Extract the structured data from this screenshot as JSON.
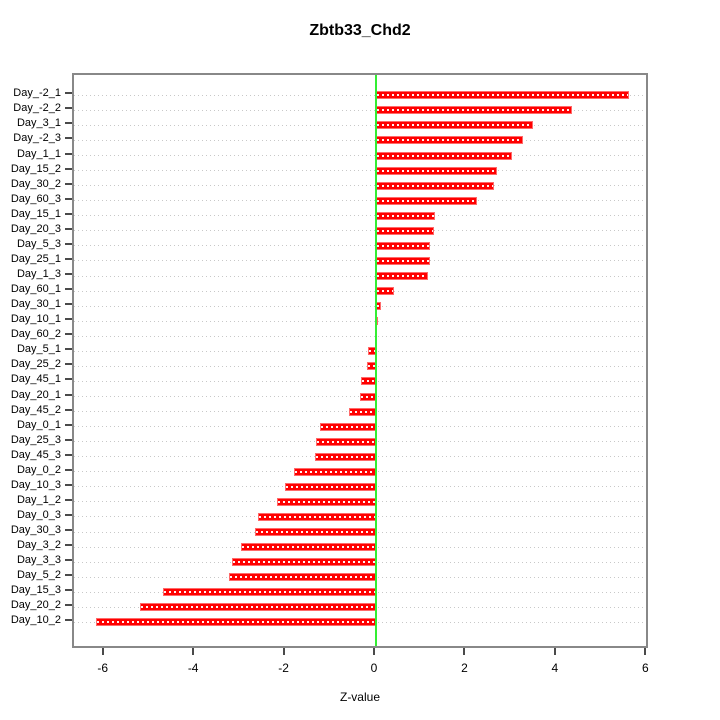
{
  "chart_data": {
    "type": "bar",
    "orientation": "horizontal",
    "title": "Zbtb33_Chd2",
    "xlabel": "Z-value",
    "ylabel": "",
    "xlim": [
      -6.68,
      6.06
    ],
    "x_ticks": [
      -6,
      -4,
      -2,
      0,
      2,
      4,
      6
    ],
    "grid": "dotted-horizontal",
    "legend": "none",
    "categories": [
      "Day_-2_1",
      "Day_-2_2",
      "Day_3_1",
      "Day_-2_3",
      "Day_1_1",
      "Day_15_2",
      "Day_30_2",
      "Day_60_3",
      "Day_15_1",
      "Day_20_3",
      "Day_5_3",
      "Day_25_1",
      "Day_1_3",
      "Day_60_1",
      "Day_30_1",
      "Day_10_1",
      "Day_60_2",
      "Day_5_1",
      "Day_25_2",
      "Day_45_1",
      "Day_20_1",
      "Day_45_2",
      "Day_0_1",
      "Day_25_3",
      "Day_45_3",
      "Day_0_2",
      "Day_10_3",
      "Day_1_2",
      "Day_0_3",
      "Day_30_3",
      "Day_3_2",
      "Day_3_3",
      "Day_5_2",
      "Day_15_3",
      "Day_20_2",
      "Day_10_2"
    ],
    "values": [
      5.59,
      4.34,
      3.47,
      3.25,
      3.01,
      2.68,
      2.62,
      2.23,
      1.31,
      1.28,
      1.2,
      1.19,
      1.14,
      0.4,
      0.11,
      0.05,
      0.0,
      -0.18,
      -0.2,
      -0.33,
      -0.35,
      -0.6,
      -1.23,
      -1.33,
      -1.36,
      -1.82,
      -2.01,
      -2.18,
      -2.6,
      -2.68,
      -2.99,
      -3.19,
      -3.26,
      -4.72,
      -5.21,
      -6.19
    ],
    "colors": {
      "bar_fill": "#ff0000",
      "bar_border": "#ff6a6a",
      "zero_line": "#33ee33",
      "grid_dots": "#c8c8c8",
      "plot_border": "#888888",
      "text": "#000000"
    }
  }
}
